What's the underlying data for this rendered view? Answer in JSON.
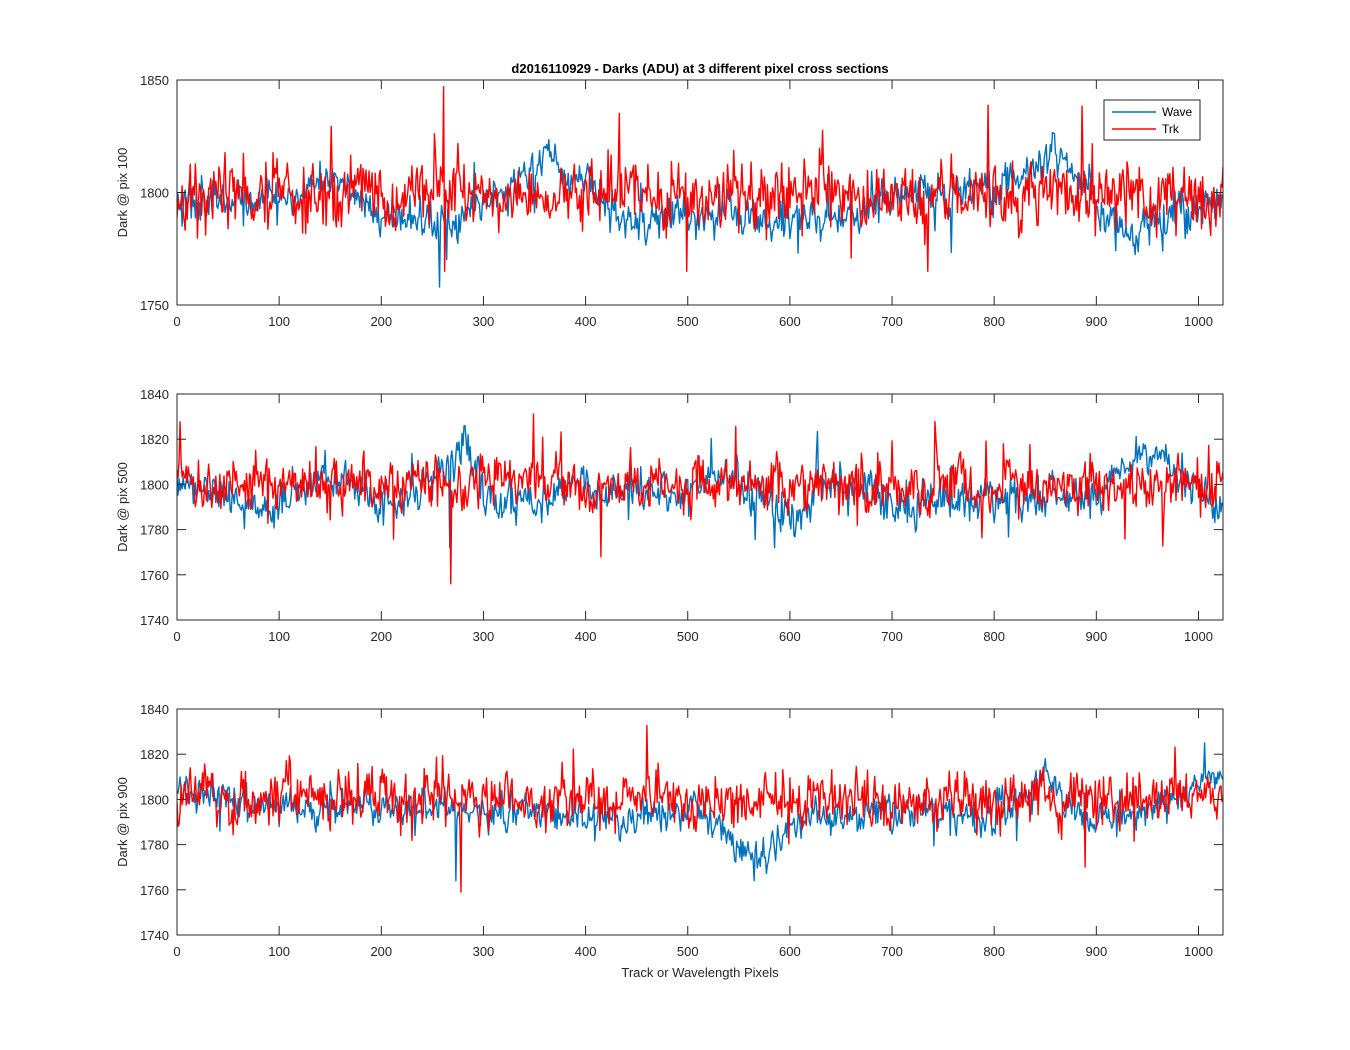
{
  "figure": {
    "title": "d2016110929 - Darks (ADU) at 3 different pixel cross sections",
    "xlabel": "Track or Wavelength Pixels"
  },
  "legend": {
    "placement": "top-right",
    "entries": [
      {
        "name": "Wave",
        "color": "#0072BD"
      },
      {
        "name": "Trk",
        "color": "#FF0000"
      }
    ]
  },
  "chart_data": [
    {
      "type": "line",
      "ylabel": "Dark @ pix 100",
      "xlim": [
        0,
        1024
      ],
      "ylim": [
        1750,
        1850
      ],
      "xticks": [
        0,
        100,
        200,
        300,
        400,
        500,
        600,
        700,
        800,
        900,
        1000
      ],
      "yticks": [
        1750,
        1800,
        1850
      ],
      "grid": false,
      "series": [
        {
          "name": "Wave",
          "color": "#0072BD",
          "mean": 1796,
          "noise": 7,
          "min": 1758,
          "max": 1829,
          "seed": 11,
          "trend": [
            [
              0,
              1796
            ],
            [
              120,
              1797
            ],
            [
              150,
              1808
            ],
            [
              200,
              1790
            ],
            [
              280,
              1788
            ],
            [
              330,
              1804
            ],
            [
              360,
              1818
            ],
            [
              390,
              1804
            ],
            [
              450,
              1787
            ],
            [
              520,
              1792
            ],
            [
              600,
              1788
            ],
            [
              650,
              1786
            ],
            [
              700,
              1800
            ],
            [
              800,
              1800
            ],
            [
              860,
              1818
            ],
            [
              900,
              1795
            ],
            [
              930,
              1782
            ],
            [
              1024,
              1798
            ]
          ]
        },
        {
          "name": "Trk",
          "color": "#FF0000",
          "mean": 1799,
          "noise": 11,
          "min": 1765,
          "max": 1847,
          "seed": 23,
          "trend": [
            [
              0,
              1799
            ],
            [
              1024,
              1799
            ]
          ]
        }
      ]
    },
    {
      "type": "line",
      "ylabel": "Dark @ pix 500",
      "xlim": [
        0,
        1024
      ],
      "ylim": [
        1740,
        1840
      ],
      "xticks": [
        0,
        100,
        200,
        300,
        400,
        500,
        600,
        700,
        800,
        900,
        1000
      ],
      "yticks": [
        1740,
        1760,
        1780,
        1800,
        1820,
        1840
      ],
      "grid": false,
      "series": [
        {
          "name": "Wave",
          "color": "#0072BD",
          "mean": 1797,
          "noise": 7,
          "min": 1772,
          "max": 1826,
          "seed": 37,
          "trend": [
            [
              0,
              1800
            ],
            [
              100,
              1790
            ],
            [
              150,
              1805
            ],
            [
              200,
              1792
            ],
            [
              250,
              1800
            ],
            [
              280,
              1816
            ],
            [
              320,
              1790
            ],
            [
              400,
              1800
            ],
            [
              500,
              1795
            ],
            [
              530,
              1806
            ],
            [
              600,
              1785
            ],
            [
              640,
              1803
            ],
            [
              700,
              1790
            ],
            [
              800,
              1794
            ],
            [
              900,
              1795
            ],
            [
              950,
              1815
            ],
            [
              1024,
              1790
            ]
          ]
        },
        {
          "name": "Trk",
          "color": "#FF0000",
          "mean": 1799,
          "noise": 9,
          "min": 1756,
          "max": 1834,
          "seed": 41,
          "trend": [
            [
              0,
              1800
            ],
            [
              1024,
              1799
            ]
          ]
        }
      ]
    },
    {
      "type": "line",
      "ylabel": "Dark @ pix 900",
      "xlim": [
        0,
        1024
      ],
      "ylim": [
        1740,
        1840
      ],
      "xticks": [
        0,
        100,
        200,
        300,
        400,
        500,
        600,
        700,
        800,
        900,
        1000
      ],
      "yticks": [
        1740,
        1760,
        1780,
        1800,
        1820,
        1840
      ],
      "grid": false,
      "series": [
        {
          "name": "Wave",
          "color": "#0072BD",
          "mean": 1795,
          "noise": 6,
          "min": 1764,
          "max": 1825,
          "seed": 53,
          "trend": [
            [
              0,
              1805
            ],
            [
              100,
              1795
            ],
            [
              200,
              1798
            ],
            [
              300,
              1795
            ],
            [
              400,
              1792
            ],
            [
              500,
              1795
            ],
            [
              540,
              1784
            ],
            [
              570,
              1775
            ],
            [
              620,
              1792
            ],
            [
              700,
              1795
            ],
            [
              800,
              1793
            ],
            [
              850,
              1808
            ],
            [
              900,
              1790
            ],
            [
              960,
              1795
            ],
            [
              1000,
              1808
            ],
            [
              1024,
              1812
            ]
          ]
        },
        {
          "name": "Trk",
          "color": "#FF0000",
          "mean": 1800,
          "noise": 9,
          "min": 1759,
          "max": 1838,
          "seed": 67,
          "trend": [
            [
              0,
              1800
            ],
            [
              1024,
              1800
            ]
          ]
        }
      ]
    }
  ]
}
